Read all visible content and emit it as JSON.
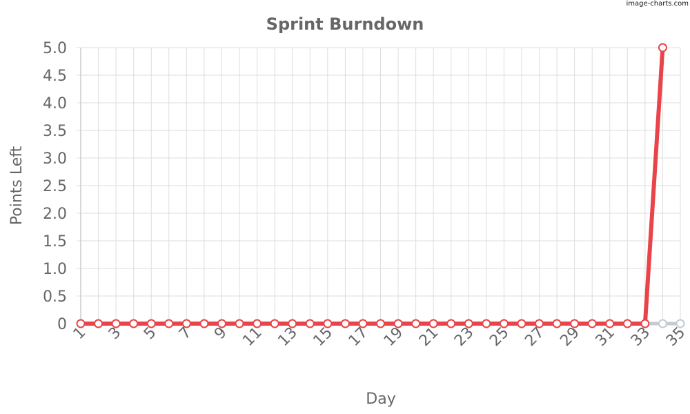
{
  "watermark": "image-charts.com",
  "chart_data": {
    "type": "line",
    "title": "Sprint Burndown",
    "xlabel": "Day",
    "ylabel": "Points Left",
    "x": [
      1,
      2,
      3,
      4,
      5,
      6,
      7,
      8,
      9,
      10,
      11,
      12,
      13,
      14,
      15,
      16,
      17,
      18,
      19,
      20,
      21,
      22,
      23,
      24,
      25,
      26,
      27,
      28,
      29,
      30,
      31,
      32,
      33,
      34,
      35
    ],
    "x_tick_labels": [
      "1",
      "3",
      "5",
      "7",
      "9",
      "11",
      "13",
      "15",
      "17",
      "19",
      "21",
      "23",
      "25",
      "27",
      "29",
      "31",
      "33",
      "35"
    ],
    "y_tick_labels": [
      "0",
      "0.5",
      "1.0",
      "1.5",
      "2.0",
      "2.5",
      "3.0",
      "3.5",
      "4.0",
      "4.5",
      "5.0"
    ],
    "ylim": [
      0,
      5
    ],
    "xlim": [
      1,
      35
    ],
    "grid": true,
    "series": [
      {
        "color": "#e8444a",
        "x": [
          1,
          2,
          3,
          4,
          5,
          6,
          7,
          8,
          9,
          10,
          11,
          12,
          13,
          14,
          15,
          16,
          17,
          18,
          19,
          20,
          21,
          22,
          23,
          24,
          25,
          26,
          27,
          28,
          29,
          30,
          31,
          32,
          33,
          34
        ],
        "values": [
          0,
          0,
          0,
          0,
          0,
          0,
          0,
          0,
          0,
          0,
          0,
          0,
          0,
          0,
          0,
          0,
          0,
          0,
          0,
          0,
          0,
          0,
          0,
          0,
          0,
          0,
          0,
          0,
          0,
          0,
          0,
          0,
          0,
          5
        ]
      },
      {
        "color": "#c5cad3",
        "x": [
          33,
          34,
          35
        ],
        "values": [
          0,
          0,
          0
        ]
      }
    ]
  }
}
